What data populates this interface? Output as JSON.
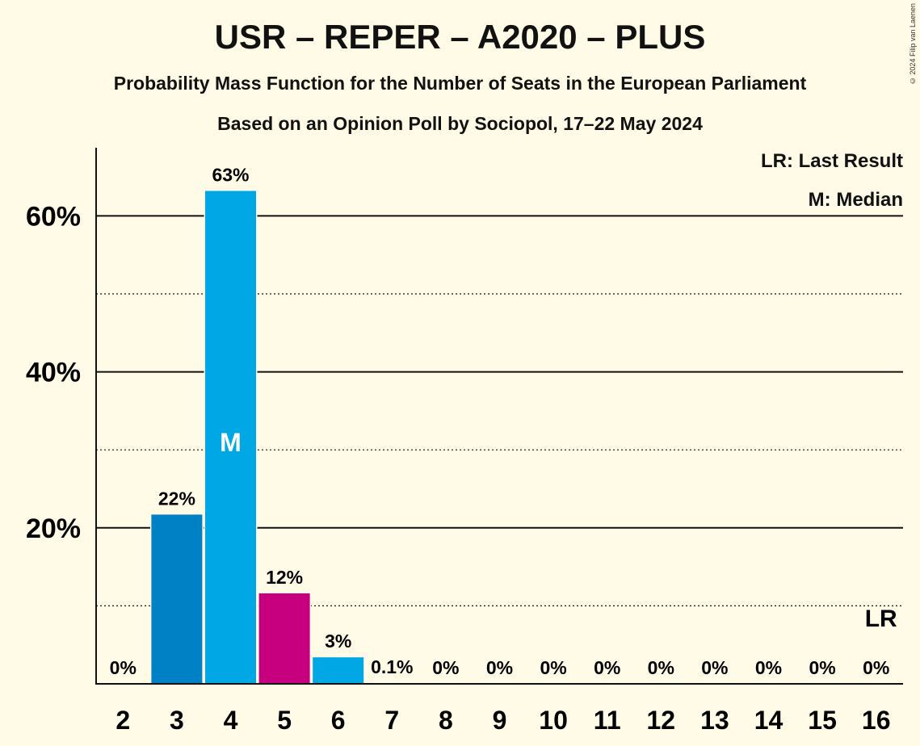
{
  "chart_data": {
    "type": "bar",
    "title": "USR – REPER – A2020 – PLUS",
    "subtitle": "Probability Mass Function for the Number of Seats in the European Parliament",
    "subtitle2": "Based on an Opinion Poll by Sociopol, 17–22 May 2024",
    "copyright": "© 2024 Filip van Laenen",
    "legend": {
      "lr": "LR: Last Result",
      "median": "M: Median"
    },
    "categories": [
      "2",
      "3",
      "4",
      "5",
      "6",
      "7",
      "8",
      "9",
      "10",
      "11",
      "12",
      "13",
      "14",
      "15",
      "16"
    ],
    "values": [
      0,
      21.7,
      63.2,
      11.6,
      3.4,
      0.1,
      0,
      0,
      0,
      0,
      0,
      0,
      0,
      0,
      0
    ],
    "value_labels": [
      "0%",
      "22%",
      "63%",
      "12%",
      "3%",
      "0.1%",
      "0%",
      "0%",
      "0%",
      "0%",
      "0%",
      "0%",
      "0%",
      "0%",
      "0%"
    ],
    "bar_colors": [
      "#0081c6",
      "#0081c6",
      "#00a7e5",
      "#c6007e",
      "#00a7e5",
      "#00a7e5",
      "#00a7e5",
      "#00a7e5",
      "#00a7e5",
      "#00a7e5",
      "#00a7e5",
      "#00a7e5",
      "#00a7e5",
      "#00a7e5",
      "#00a7e5"
    ],
    "median_category": "4",
    "median_marker": "M",
    "last_result_category": "16",
    "last_result_marker": "LR",
    "yticks": [
      20,
      40,
      60
    ],
    "ytick_labels": [
      "20%",
      "40%",
      "60%"
    ],
    "minor_gridlines": [
      10,
      30,
      50
    ],
    "ylim": [
      0,
      69
    ]
  }
}
